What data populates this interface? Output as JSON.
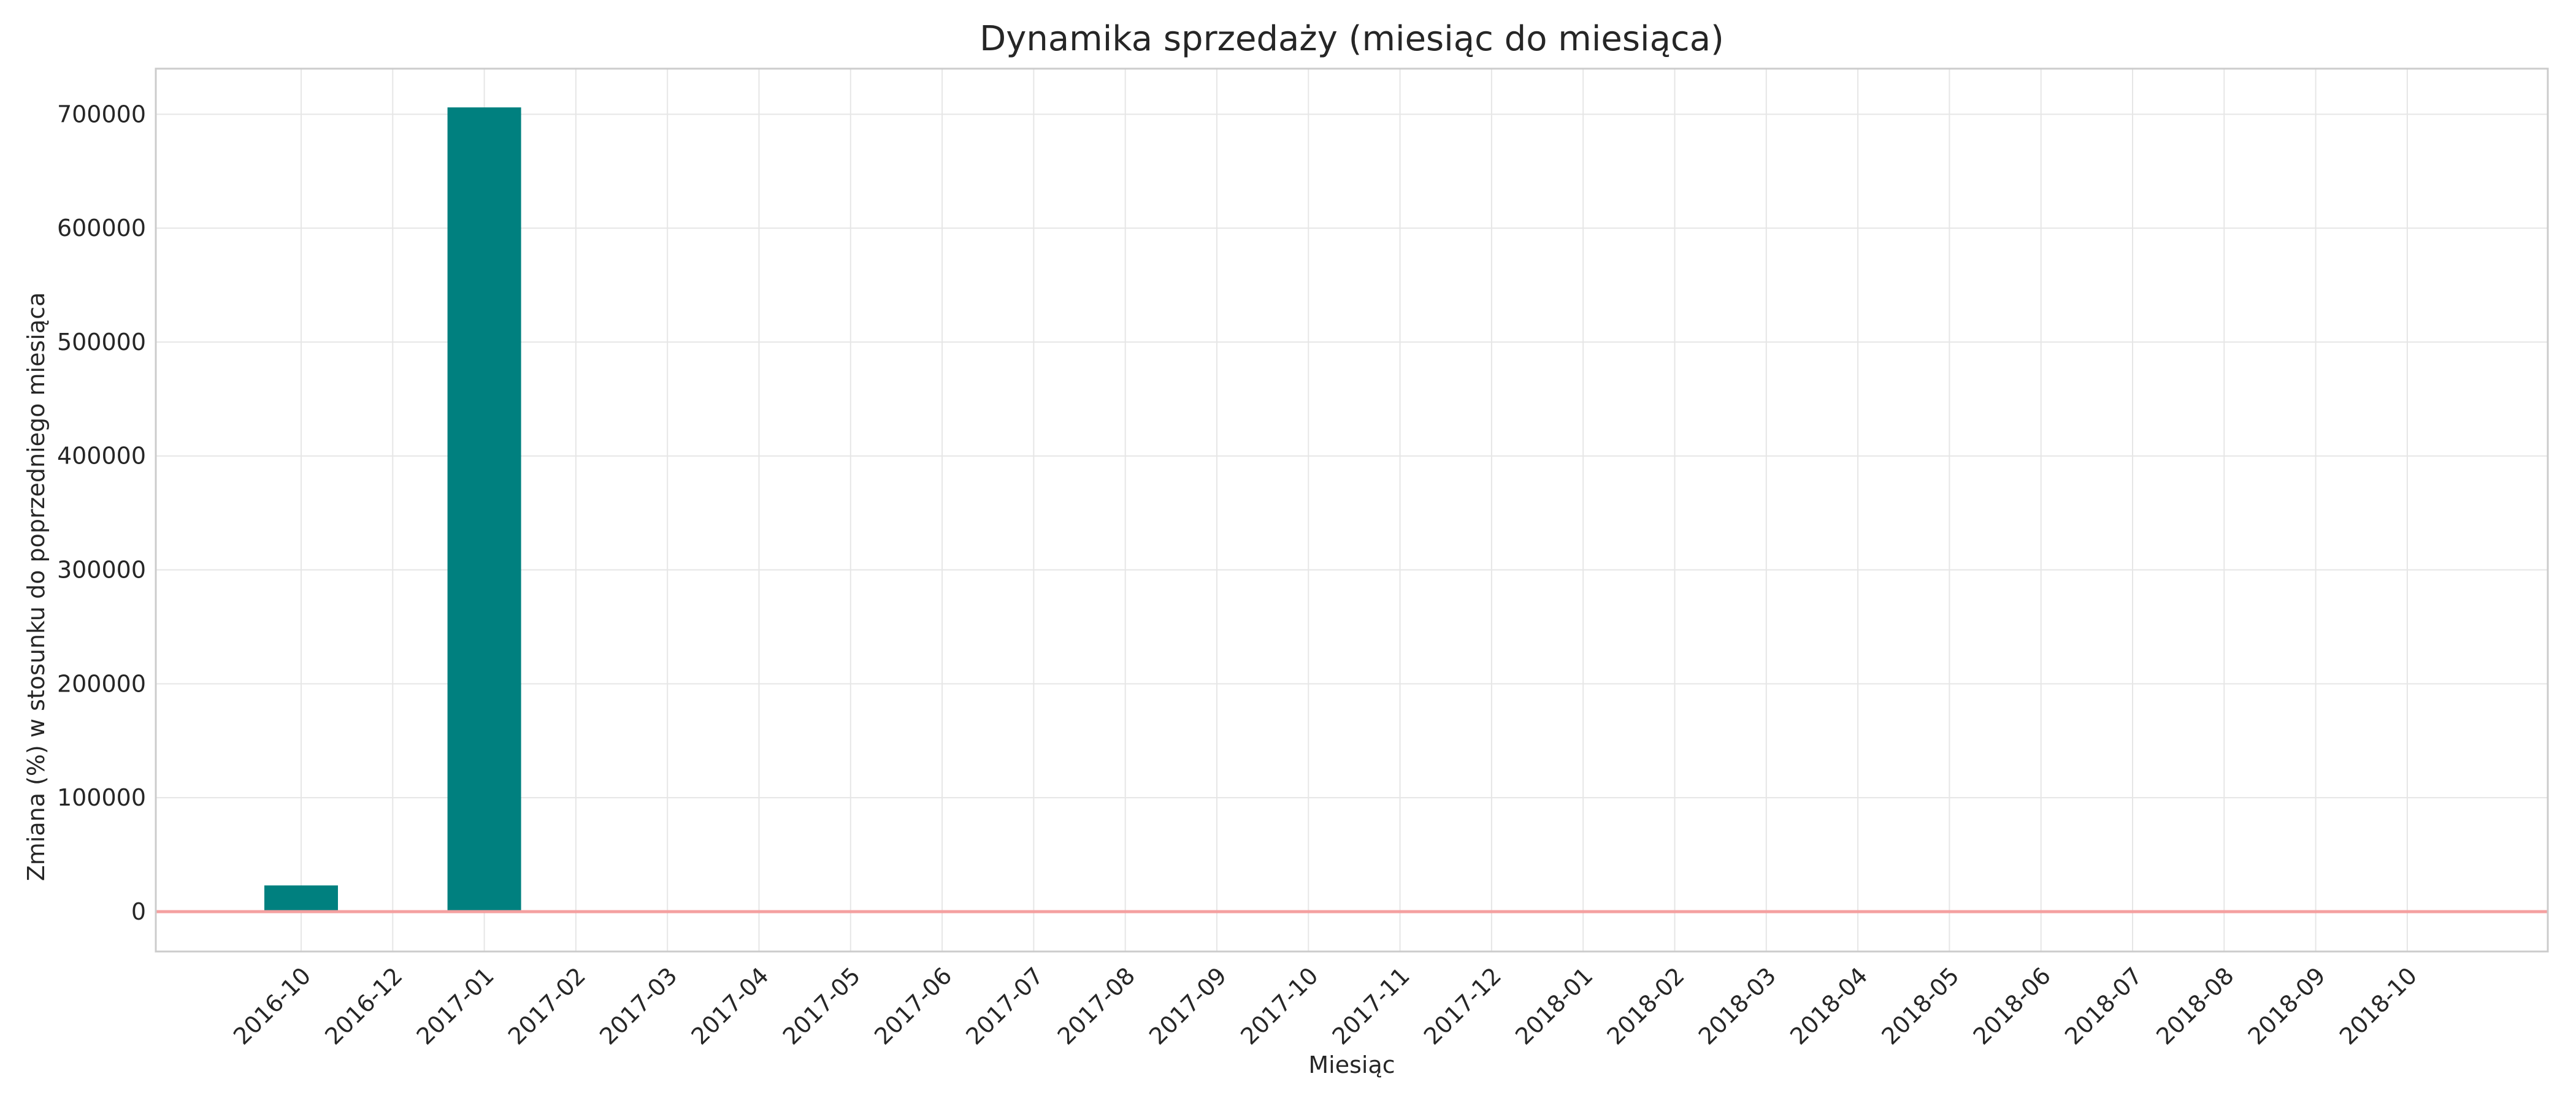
{
  "chart_data": {
    "type": "bar",
    "title": "Dynamika sprzedaży (miesiąc do miesiąca)",
    "xlabel": "Miesiąc",
    "ylabel": "Zmiana (%) w stosunku do poprzedniego miesiąca",
    "categories": [
      "2016-10",
      "2016-12",
      "2017-01",
      "2017-02",
      "2017-03",
      "2017-04",
      "2017-05",
      "2017-06",
      "2017-07",
      "2017-08",
      "2017-09",
      "2017-10",
      "2017-11",
      "2017-12",
      "2018-01",
      "2018-02",
      "2018-03",
      "2018-04",
      "2018-05",
      "2018-06",
      "2018-07",
      "2018-08",
      "2018-09",
      "2018-10"
    ],
    "values": [
      23000,
      0,
      706000,
      100,
      50,
      0,
      50,
      0,
      10,
      0,
      0,
      10,
      50,
      0,
      10,
      0,
      10,
      0,
      0,
      0,
      0,
      0,
      -10,
      -100
    ],
    "ylim": [
      -35000,
      740000
    ],
    "yticks": [
      0,
      100000,
      200000,
      300000,
      400000,
      500000,
      600000,
      700000
    ],
    "grid": true,
    "reference_line": 0,
    "colors": {
      "bar": "#00807f",
      "zero_line": "#f4a0a0",
      "grid": "#e6e6e6",
      "frame": "#cccccc"
    }
  }
}
